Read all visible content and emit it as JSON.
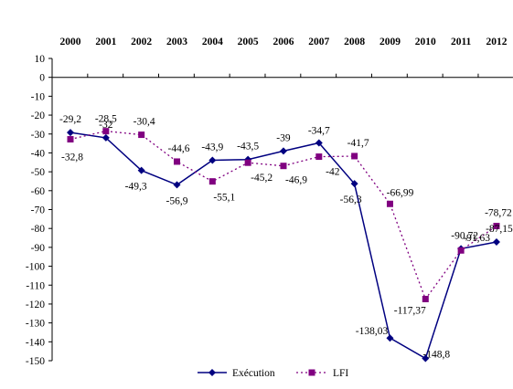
{
  "chart_data": {
    "type": "line",
    "categories": [
      "2000",
      "2001",
      "2002",
      "2003",
      "2004",
      "2005",
      "2006",
      "2007",
      "2008",
      "2009",
      "2010",
      "2011",
      "2012"
    ],
    "ylim": [
      -150,
      10
    ],
    "y_ticks": [
      10,
      0,
      -10,
      -20,
      -30,
      -40,
      -50,
      -60,
      -70,
      -80,
      -90,
      -100,
      -110,
      -120,
      -130,
      -140,
      -150
    ],
    "y_tick_labels": [
      "10",
      "0",
      "-10",
      "-20",
      "-30",
      "-40",
      "-50",
      "-60",
      "-70",
      "-80",
      "-90",
      "-100",
      "-110",
      "-120",
      "-130",
      "-140",
      "-150"
    ],
    "x_axis_position": "top",
    "grid": false,
    "legend": "bottom",
    "series": [
      {
        "name": "Exécution",
        "color": "#000080",
        "line": "solid",
        "marker": "diamond",
        "values": [
          -29.2,
          -32,
          -49.3,
          -56.9,
          -43.9,
          -43.5,
          -39,
          -34.7,
          -56.3,
          -138.03,
          -148.8,
          -90.72,
          -87.15
        ],
        "labels": [
          "-29,2",
          "-32",
          "-49,3",
          "-56,9",
          "-43,9",
          "-43,5",
          "-39",
          "-34,7",
          "-56,3",
          "-138,03",
          "-148,8",
          "-90,72",
          "-87,15"
        ]
      },
      {
        "name": "LFI",
        "color": "#800080",
        "line": "dotted",
        "marker": "square",
        "values": [
          -32.8,
          -28.5,
          -30.4,
          -44.6,
          -55.1,
          -45.2,
          -46.9,
          -42,
          -41.7,
          -66.99,
          -117.37,
          -91.63,
          -78.72
        ],
        "labels": [
          "-32,8",
          "-28,5",
          "-30,4",
          "-44,6",
          "-55,1",
          "-45,2",
          "-46,9",
          "-42",
          "-41,7",
          "-66,99",
          "-117,37",
          "-91,63",
          "-78,72"
        ]
      }
    ]
  }
}
